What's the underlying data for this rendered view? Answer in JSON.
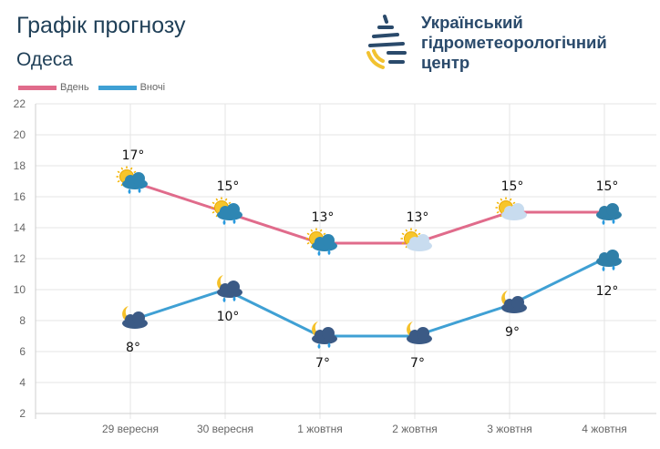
{
  "header": {
    "title": "Графік прогнозу",
    "city": "Одеса"
  },
  "logo": {
    "org_lines": [
      "Український",
      "гідрометеорологічний",
      "центр"
    ]
  },
  "chart_data": {
    "type": "line",
    "categories": [
      "29 вересня",
      "30 вересня",
      "1 жовтня",
      "2 жовтня",
      "3 жовтня",
      "4 жовтня"
    ],
    "series": [
      {
        "name": "Вдень",
        "color": "#e06b8b",
        "values": [
          17,
          15,
          13,
          13,
          15,
          15
        ],
        "labels": [
          "17°",
          "15°",
          "13°",
          "13°",
          "15°",
          "15°"
        ],
        "icons": [
          "sun-cloud-rain",
          "sun-cloud-rain",
          "sun-cloud-rain",
          "sun-cloud",
          "sun-cloud",
          "cloud-rain"
        ]
      },
      {
        "name": "Вночі",
        "color": "#3fa0d4",
        "values": [
          8,
          10,
          7,
          7,
          9,
          12
        ],
        "labels": [
          "8°",
          "10°",
          "7°",
          "7°",
          "9°",
          "12°"
        ],
        "icons": [
          "moon-cloud",
          "moon-cloud-rain",
          "moon-cloud-rain",
          "moon-cloud",
          "moon-cloud",
          "cloud-rain"
        ]
      }
    ],
    "ylim": [
      2,
      22
    ],
    "yticks": [
      2,
      4,
      6,
      8,
      10,
      12,
      14,
      16,
      18,
      20,
      22
    ],
    "grid": true,
    "legend": "top-left"
  }
}
